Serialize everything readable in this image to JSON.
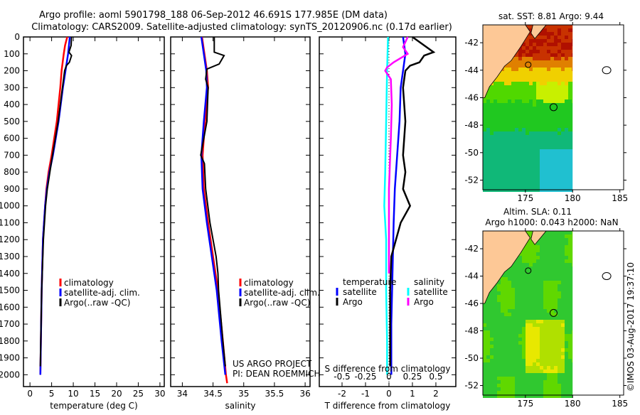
{
  "title": {
    "line1": "Argo profile: aoml 5901798_188 06-Sep-2012 46.691S 177.985E (DM data)",
    "line2": "Climatology: CARS2009. Satellite-adjusted climatology: synTS_20120906.nc (0.17d earlier)"
  },
  "colors": {
    "climatology": "#ff0000",
    "satellite": "#0000ff",
    "argo": "#000000",
    "s_satellite": "#00ffff",
    "s_argo": "#ff00ff"
  },
  "chart_data": [
    {
      "type": "line",
      "name": "temperature",
      "xlabel": "temperature (deg C)",
      "ylabel": "",
      "xlim": [
        -1.5,
        31
      ],
      "ylim": [
        2070,
        0
      ],
      "xticks": [
        0,
        5,
        10,
        15,
        20,
        25,
        30
      ],
      "yticks": [
        0,
        100,
        200,
        300,
        400,
        500,
        600,
        700,
        800,
        900,
        1000,
        1100,
        1200,
        1300,
        1400,
        1500,
        1600,
        1700,
        1800,
        1900,
        2000
      ],
      "legend": [
        "climatology",
        "satellite-adj. clim.",
        "Argo(..raw -QC)"
      ],
      "series": [
        {
          "name": "climatology",
          "depth": [
            0,
            50,
            100,
            200,
            300,
            500,
            700,
            800,
            900,
            1000,
            1200,
            1500,
            2000
          ],
          "values": [
            8.6,
            8.1,
            7.8,
            7.3,
            7.0,
            6.2,
            5.0,
            4.3,
            3.8,
            3.5,
            3.0,
            2.7,
            2.4
          ]
        },
        {
          "name": "satellite-adj. clim.",
          "depth": [
            0,
            50,
            100,
            200,
            300,
            500,
            700,
            800,
            900,
            1000,
            1200,
            1500,
            2000
          ],
          "values": [
            9.2,
            9.0,
            8.8,
            8.2,
            7.6,
            6.6,
            5.3,
            4.5,
            3.9,
            3.5,
            3.0,
            2.7,
            2.4
          ]
        },
        {
          "name": "Argo(..raw -QC)",
          "depth": [
            0,
            50,
            90,
            110,
            150,
            170,
            200,
            300,
            500,
            700,
            900,
            1000,
            1200,
            1500,
            1950
          ],
          "values": [
            9.6,
            9.5,
            9.0,
            9.6,
            9.1,
            8.4,
            8.0,
            7.5,
            6.5,
            5.2,
            4.0,
            3.6,
            3.1,
            2.7,
            2.4
          ]
        }
      ]
    },
    {
      "type": "line",
      "name": "salinity",
      "xlabel": "salinity",
      "xlim": [
        33.81,
        36.08
      ],
      "ylim": [
        2070,
        0
      ],
      "xticks": [
        34,
        34.5,
        35,
        35.5,
        36
      ],
      "legend": [
        "climatology",
        "satellite-adj. clim.",
        "Argo(..raw -QC)"
      ],
      "annotation": [
        "US ARGO PROJECT",
        "PI: DEAN ROEMMICH"
      ],
      "series": [
        {
          "name": "climatology",
          "depth": [
            0,
            100,
            200,
            300,
            500,
            700,
            900,
            1100,
            1300,
            1500,
            1800,
            2000,
            2050
          ],
          "values": [
            34.32,
            34.36,
            34.4,
            34.42,
            34.37,
            34.33,
            34.35,
            34.42,
            34.5,
            34.58,
            34.66,
            34.71,
            34.73
          ]
        },
        {
          "name": "satellite-adj. clim.",
          "depth": [
            0,
            100,
            200,
            300,
            500,
            700,
            900,
            1100,
            1300,
            1500,
            1800,
            2000
          ],
          "values": [
            34.31,
            34.35,
            34.39,
            34.4,
            34.35,
            34.31,
            34.33,
            34.4,
            34.48,
            34.56,
            34.64,
            34.7
          ]
        },
        {
          "name": "Argo(..raw -QC)",
          "depth": [
            0,
            90,
            110,
            160,
            190,
            250,
            300,
            500,
            600,
            700,
            750,
            900,
            1100,
            1300,
            1400,
            1500,
            1800,
            1950
          ],
          "values": [
            34.52,
            34.52,
            34.68,
            34.6,
            34.4,
            34.38,
            34.42,
            34.4,
            34.35,
            34.3,
            34.36,
            34.38,
            34.45,
            34.55,
            34.58,
            34.59,
            34.66,
            34.7
          ]
        }
      ]
    },
    {
      "type": "line",
      "name": "difference",
      "xlabel": "T difference from climatology",
      "x2label": "S difference from climatology",
      "xlim": [
        -2.97,
        2.85
      ],
      "ylim": [
        2070,
        0
      ],
      "xticks": [
        -2,
        -1,
        0,
        1,
        2
      ],
      "x2ticks": [
        "-0.5",
        "-0.25",
        "0",
        "0.25",
        "0.5"
      ],
      "legend": {
        "temperature": "temperature",
        "salinity": "salinity",
        "t_sat": "satellite",
        "t_argo": "Argo",
        "s_sat": "satellite",
        "s_argo": "Argo"
      },
      "series": [
        {
          "name": "T satellite",
          "depth": [
            0,
            100,
            200,
            300,
            500,
            700,
            900,
            1100,
            1400,
            1700,
            2000
          ],
          "values": [
            0.6,
            0.7,
            0.6,
            0.5,
            0.45,
            0.35,
            0.25,
            0.2,
            0.15,
            0.1,
            0.1
          ]
        },
        {
          "name": "T Argo",
          "depth": [
            0,
            40,
            90,
            110,
            150,
            170,
            200,
            300,
            500,
            700,
            800,
            900,
            1000,
            1100,
            1300,
            1500,
            1950
          ],
          "values": [
            1.0,
            1.4,
            1.9,
            1.5,
            1.3,
            0.9,
            0.7,
            0.6,
            0.7,
            0.6,
            0.7,
            0.6,
            0.9,
            0.5,
            0.1,
            0.05,
            0.05
          ]
        },
        {
          "name": "S satellite",
          "depth": [
            0,
            200,
            500,
            800,
            1000,
            1200,
            1500,
            1800,
            2000
          ],
          "values": [
            -0.01,
            -0.02,
            -0.03,
            -0.04,
            -0.05,
            -0.03,
            -0.03,
            -0.02,
            -0.02
          ]
        },
        {
          "name": "S Argo",
          "depth": [
            0,
            60,
            100,
            150,
            180,
            200,
            250,
            400,
            600,
            900,
            1100,
            1400
          ],
          "values": [
            0.2,
            0.15,
            0.2,
            0.05,
            -0.02,
            -0.04,
            0.02,
            0.03,
            0.02,
            0.0,
            0.0,
            0.0
          ]
        }
      ]
    }
  ],
  "maps": [
    {
      "name": "sst",
      "title": "sat. SST: 8.81  Argo: 9.44",
      "lon_ticks": [
        175,
        180,
        185
      ],
      "lat_ticks": [
        -42,
        -44,
        -46,
        -48,
        -50,
        -52
      ],
      "lonlim": [
        170.5,
        185.4
      ],
      "latlim": [
        -40.7,
        -52.7
      ],
      "float_lon": 177.985,
      "float_lat": -46.691
    },
    {
      "name": "sla",
      "title": "Altim. SLA: 0.11",
      "subtitle": "Argo h1000: 0.043 h2000: NaN",
      "lon_ticks": [
        175,
        180,
        185
      ],
      "lat_ticks": [
        -42,
        -44,
        -46,
        -48,
        -50,
        -52
      ],
      "lonlim": [
        170.5,
        185.4
      ],
      "latlim": [
        -40.7,
        -52.7
      ],
      "float_lon": 177.985,
      "float_lat": -46.691
    }
  ],
  "credit": "©IMOS 03-Aug-2017 19:37:10"
}
